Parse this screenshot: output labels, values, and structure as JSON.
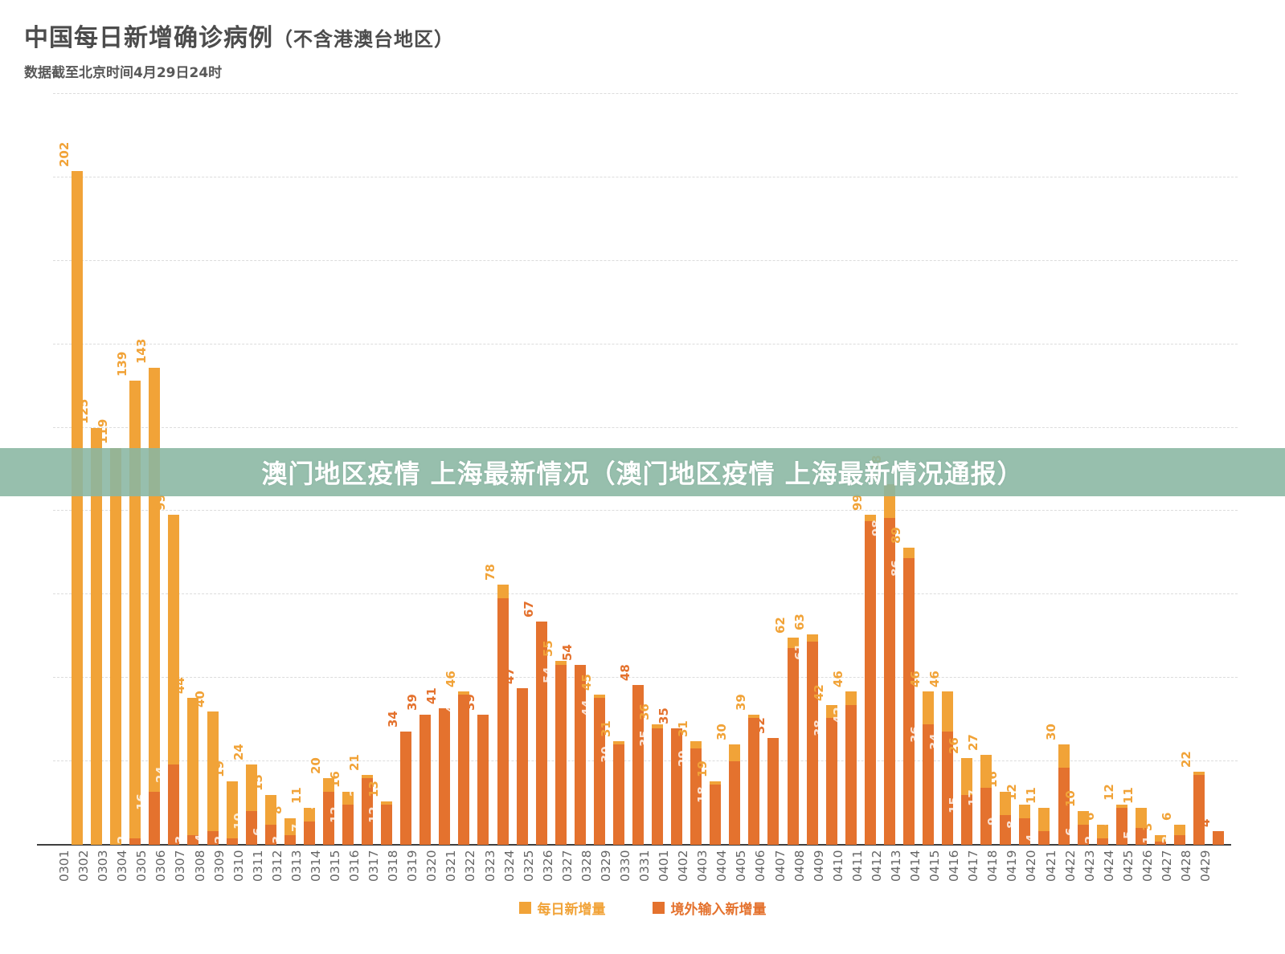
{
  "header": {
    "title": "中国每日新增确诊病例",
    "title_paren": "（不含港澳台地区）",
    "subtitle": "数据截至北京时间4月29日24时"
  },
  "banner": {
    "text": "澳门地区疫情 上海最新情况（澳门地区疫情 上海最新情况通报）",
    "background": "rgba(137,182,162,0.88)"
  },
  "colors": {
    "daily_light_orange": "#F1A338",
    "imported_dark_orange": "#E4722E",
    "inner_label_white": "rgba(255,255,255,0.78)",
    "axis_label_gray": "#666666"
  },
  "chart_data": {
    "type": "bar",
    "subtype": "overlay-stacked",
    "title": "中国每日新增确诊病例（不含港澳台地区）",
    "xlabel": "",
    "ylabel": "",
    "ylim": [
      0,
      225
    ],
    "yticks": [
      0,
      25,
      50,
      75,
      100,
      125,
      150,
      175,
      200,
      225
    ],
    "grid": true,
    "legend_position": "bottom",
    "x": [
      "0301",
      "0302",
      "0303",
      "0304",
      "0305",
      "0306",
      "0307",
      "0308",
      "0309",
      "0310",
      "0311",
      "0312",
      "0313",
      "0314",
      "0315",
      "0316",
      "0317",
      "0318",
      "0319",
      "0320",
      "0321",
      "0322",
      "0323",
      "0324",
      "0325",
      "0326",
      "0327",
      "0328",
      "0329",
      "0330",
      "0331",
      "0401",
      "0402",
      "0403",
      "0404",
      "0405",
      "0406",
      "0407",
      "0408",
      "0409",
      "0410",
      "0411",
      "0412",
      "0413",
      "0414",
      "0415",
      "0416",
      "0417",
      "0418",
      "0419",
      "0420",
      "0421",
      "0422",
      "0423",
      "0424",
      "0425",
      "0426",
      "0427",
      "0428",
      "0429"
    ],
    "series": [
      {
        "name": "每日新增量",
        "color": "#F1A338",
        "values": [
          202,
          125,
          119,
          139,
          143,
          99,
          44,
          40,
          19,
          24,
          15,
          8,
          11,
          20,
          16,
          21,
          13,
          34,
          39,
          41,
          46,
          39,
          78,
          47,
          67,
          55,
          54,
          45,
          31,
          48,
          36,
          35,
          31,
          19,
          30,
          39,
          32,
          62,
          63,
          42,
          46,
          99,
          108,
          89,
          46,
          46,
          26,
          27,
          16,
          12,
          11,
          30,
          10,
          6,
          12,
          11,
          3,
          6,
          22,
          4
        ]
      },
      {
        "name": "境外输入新增量",
        "color": "#E4722E",
        "values": [
          0,
          0,
          0,
          2,
          16,
          24,
          3,
          4,
          2,
          10,
          6,
          3,
          7,
          16,
          12,
          20,
          12,
          34,
          39,
          41,
          45,
          39,
          74,
          47,
          67,
          54,
          54,
          44,
          30,
          48,
          35,
          35,
          29,
          18,
          25,
          38,
          32,
          59,
          61,
          38,
          42,
          97,
          98,
          86,
          36,
          34,
          15,
          17,
          9,
          8,
          4,
          23,
          6,
          2,
          11,
          5,
          1,
          3,
          21,
          4
        ]
      }
    ]
  }
}
